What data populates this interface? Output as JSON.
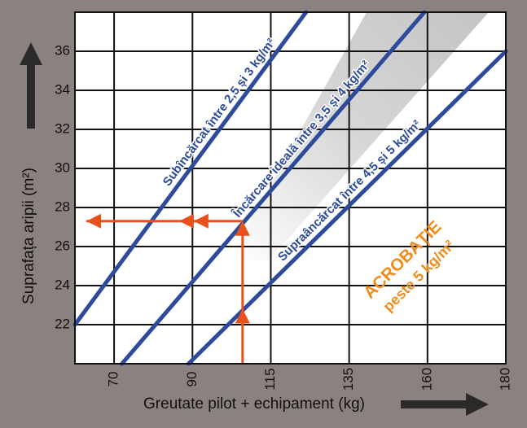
{
  "chart_data": {
    "type": "line",
    "y_label": "Suprafața aripii (m²)",
    "x_label": "Greutate pilot + echipament (kg)",
    "xlim": [
      60,
      180
    ],
    "ylim": [
      20,
      38
    ],
    "xticks": [
      70,
      90,
      115,
      135,
      160,
      180
    ],
    "yticks": [
      22,
      24,
      26,
      28,
      30,
      32,
      34,
      36
    ],
    "grid": true,
    "series": [
      {
        "name": "Subîncărcat între 2,5 și 3 kg/m²",
        "color": "#2d4a9b",
        "x": [
          60,
          124
        ],
        "y": [
          22,
          38
        ]
      },
      {
        "name": "Încărcare ideală între 3,5 și 4 kg/m²",
        "color": "#2d4a9b",
        "x": [
          72,
          159
        ],
        "y": [
          20,
          38
        ]
      },
      {
        "name": "Supraâncărcat între 4,5 și 5 kg/m²",
        "color": "#2d4a9b",
        "x": [
          89,
          180
        ],
        "y": [
          20,
          36
        ]
      }
    ],
    "annotation": {
      "text": "ACROBAȚIE",
      "subtext": "peste 5 kg/m²",
      "color": "#f08c1e"
    },
    "reading": {
      "x": 106,
      "y": 27.3,
      "color": "#e8501c"
    }
  }
}
